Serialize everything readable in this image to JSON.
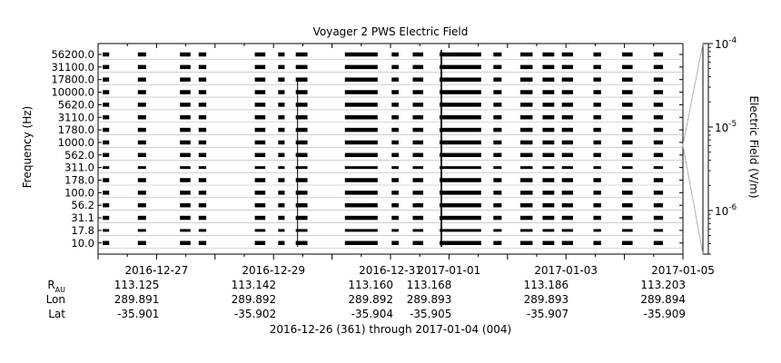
{
  "chart_data": {
    "type": "heatmap",
    "title": "Voyager 2 PWS Electric Field",
    "ylabel": "Frequency (Hz)",
    "colorbar_label": "Electric Field (V/m)",
    "colorbar_ticks": [
      {
        "base": "10",
        "exp": "-4",
        "value": 0.0001
      },
      {
        "base": "10",
        "exp": "-5",
        "value": 1e-05
      },
      {
        "base": "10",
        "exp": "-6",
        "value": 1e-06
      }
    ],
    "colorbar_range": [
      3e-07,
      0.0001
    ],
    "frequency_channels": [
      "56200.0",
      "31100.0",
      "17800.0",
      "10000.0",
      "5620.0",
      "3110.0",
      "1780.0",
      "1000.0",
      "562.0",
      "311.0",
      "178.0",
      "100.0",
      "56.2",
      "31.1",
      "17.8",
      "10.0"
    ],
    "x_range": [
      "2016-12-26",
      "2017-01-05"
    ],
    "x_ticks": [
      {
        "label": "2016-12-27",
        "day": 1
      },
      {
        "label": "2016-12-29",
        "day": 3
      },
      {
        "label": "2016-12-31",
        "day": 5
      },
      {
        "label": "2017-01-01",
        "day": 6
      },
      {
        "label": "2017-01-03",
        "day": 8
      },
      {
        "label": "2017-01-05",
        "day": 10
      }
    ],
    "ephemeris": {
      "row_labels": [
        {
          "main": "R",
          "sub": "AU"
        },
        {
          "main": "Lon",
          "sub": ""
        },
        {
          "main": "Lat",
          "sub": ""
        }
      ],
      "columns": [
        {
          "day": 1,
          "r": "113.125",
          "lon": "289.891",
          "lat": "-35.901"
        },
        {
          "day": 3,
          "r": "113.142",
          "lon": "289.892",
          "lat": "-35.902"
        },
        {
          "day": 5,
          "r": "113.160",
          "lon": "289.892",
          "lat": "-35.904"
        },
        {
          "day": 6,
          "r": "113.168",
          "lon": "289.893",
          "lat": "-35.905"
        },
        {
          "day": 8,
          "r": "113.186",
          "lon": "289.893",
          "lat": "-35.907"
        },
        {
          "day": 10,
          "r": "113.203",
          "lon": "289.894",
          "lat": "-35.909"
        }
      ]
    },
    "date_range_caption": "2016-12-26 (361) through 2017-01-04 (004)",
    "data_segments_days": [
      [
        0.08,
        0.19
      ],
      [
        0.68,
        0.82
      ],
      [
        1.4,
        1.58
      ],
      [
        1.72,
        1.85
      ],
      [
        2.68,
        2.86
      ],
      [
        3.08,
        3.19
      ],
      [
        3.38,
        3.58
      ],
      [
        4.22,
        4.78
      ],
      [
        5.02,
        5.14
      ],
      [
        5.38,
        5.56
      ],
      [
        5.84,
        6.55
      ],
      [
        6.76,
        6.9
      ],
      [
        7.22,
        7.43
      ],
      [
        7.6,
        7.8
      ],
      [
        7.93,
        8.12
      ],
      [
        8.47,
        8.6
      ],
      [
        8.96,
        9.14
      ],
      [
        9.5,
        9.66
      ]
    ],
    "spikes_days": [
      3.38,
      5.87
    ],
    "colors": {
      "data": "#000000",
      "axis": "#000000",
      "grid": "#b0b0b0"
    }
  }
}
